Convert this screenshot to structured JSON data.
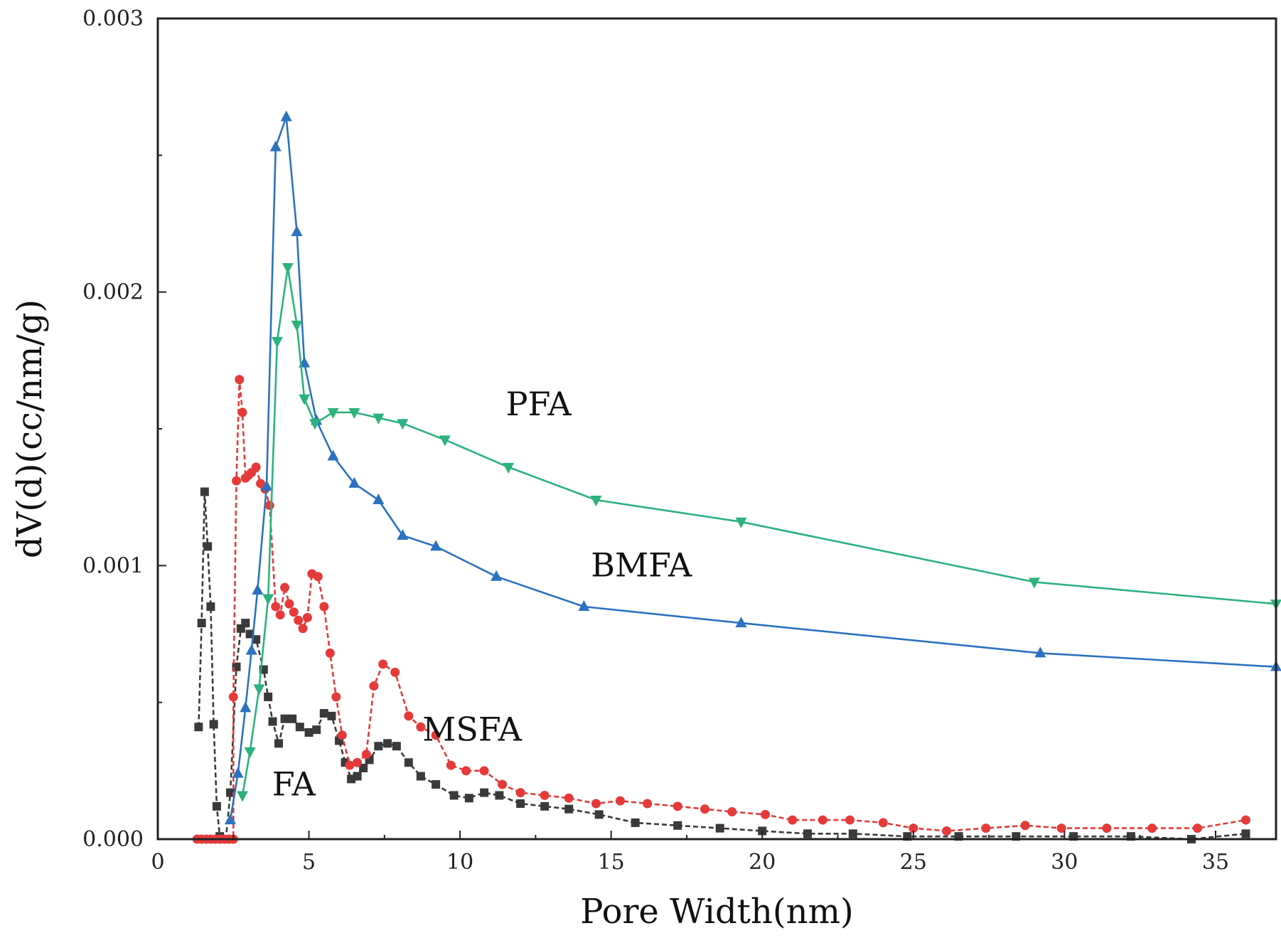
{
  "chart_data": {
    "type": "line",
    "title": "",
    "xlabel": "Pore Width(nm)",
    "ylabel": "dV(d)(cc/nm/g)",
    "xlim": [
      0,
      37
    ],
    "ylim": [
      0,
      0.003
    ],
    "grid": false,
    "x_ticks": [
      0,
      5,
      10,
      15,
      20,
      25,
      30,
      35
    ],
    "y_ticks": [
      0.0,
      0.001,
      0.002,
      0.003
    ],
    "x_tick_labels": [
      "0",
      "5",
      "10",
      "15",
      "20",
      "25",
      "30",
      "35"
    ],
    "y_tick_labels": [
      "0.000",
      "0.001",
      "0.002",
      "0.003"
    ],
    "series": [
      {
        "name": "FA",
        "label": "FA",
        "color": "#3a3a3a",
        "marker": "square",
        "dashed": true,
        "label_at": [
          4.5,
          0.00016
        ],
        "points": [
          [
            1.35,
            0.00041
          ],
          [
            1.45,
            0.00079
          ],
          [
            1.55,
            0.00127
          ],
          [
            1.65,
            0.00107
          ],
          [
            1.75,
            0.00085
          ],
          [
            1.85,
            0.00042
          ],
          [
            1.95,
            0.00012
          ],
          [
            2.05,
            1e-05
          ],
          [
            2.15,
            0.0
          ],
          [
            2.25,
            0.0
          ],
          [
            2.4,
            0.00017
          ],
          [
            2.6,
            0.00063
          ],
          [
            2.75,
            0.00077
          ],
          [
            2.9,
            0.00079
          ],
          [
            3.05,
            0.00075
          ],
          [
            3.25,
            0.00073
          ],
          [
            3.5,
            0.00062
          ],
          [
            3.65,
            0.00052
          ],
          [
            3.8,
            0.00043
          ],
          [
            4.0,
            0.00035
          ],
          [
            4.2,
            0.00044
          ],
          [
            4.45,
            0.00044
          ],
          [
            4.7,
            0.00041
          ],
          [
            5.0,
            0.00039
          ],
          [
            5.25,
            0.0004
          ],
          [
            5.5,
            0.00046
          ],
          [
            5.75,
            0.00045
          ],
          [
            6.0,
            0.00036
          ],
          [
            6.2,
            0.00028
          ],
          [
            6.4,
            0.00022
          ],
          [
            6.6,
            0.00023
          ],
          [
            6.8,
            0.00026
          ],
          [
            7.0,
            0.00029
          ],
          [
            7.3,
            0.00034
          ],
          [
            7.6,
            0.00035
          ],
          [
            7.9,
            0.00034
          ],
          [
            8.3,
            0.00028
          ],
          [
            8.7,
            0.00023
          ],
          [
            9.2,
            0.0002
          ],
          [
            9.8,
            0.00016
          ],
          [
            10.3,
            0.00015
          ],
          [
            10.8,
            0.00017
          ],
          [
            11.3,
            0.00016
          ],
          [
            12.0,
            0.00013
          ],
          [
            12.8,
            0.00012
          ],
          [
            13.6,
            0.00011
          ],
          [
            14.6,
            9e-05
          ],
          [
            15.8,
            6e-05
          ],
          [
            17.2,
            5e-05
          ],
          [
            18.6,
            4e-05
          ],
          [
            20.0,
            3e-05
          ],
          [
            21.5,
            2e-05
          ],
          [
            23.0,
            2e-05
          ],
          [
            24.8,
            1e-05
          ],
          [
            26.5,
            1e-05
          ],
          [
            28.4,
            1e-05
          ],
          [
            30.3,
            1e-05
          ],
          [
            32.2,
            1e-05
          ],
          [
            34.2,
            0.0
          ],
          [
            36.0,
            2e-05
          ]
        ]
      },
      {
        "name": "MSFA",
        "label": "MSFA",
        "color": "#e53a3a",
        "marker": "circle",
        "dashed": true,
        "label_at": [
          10.4,
          0.00036
        ],
        "points": [
          [
            1.3,
            0.0
          ],
          [
            1.45,
            0.0
          ],
          [
            1.6,
            0.0
          ],
          [
            1.75,
            0.0
          ],
          [
            1.9,
            0.0
          ],
          [
            2.05,
            0.0
          ],
          [
            2.2,
            0.0
          ],
          [
            2.35,
            0.0
          ],
          [
            2.5,
            0.0
          ],
          [
            2.5,
            0.00052
          ],
          [
            2.6,
            0.00131
          ],
          [
            2.7,
            0.00168
          ],
          [
            2.8,
            0.00156
          ],
          [
            2.9,
            0.00132
          ],
          [
            3.0,
            0.00133
          ],
          [
            3.1,
            0.00134
          ],
          [
            3.25,
            0.00136
          ],
          [
            3.4,
            0.0013
          ],
          [
            3.55,
            0.00128
          ],
          [
            3.7,
            0.00122
          ],
          [
            3.9,
            0.00085
          ],
          [
            4.05,
            0.00082
          ],
          [
            4.2,
            0.00092
          ],
          [
            4.35,
            0.00086
          ],
          [
            4.5,
            0.00083
          ],
          [
            4.65,
            0.0008
          ],
          [
            4.8,
            0.00077
          ],
          [
            4.95,
            0.00081
          ],
          [
            5.1,
            0.00097
          ],
          [
            5.3,
            0.00096
          ],
          [
            5.5,
            0.00085
          ],
          [
            5.7,
            0.00068
          ],
          [
            5.9,
            0.00052
          ],
          [
            6.1,
            0.00038
          ],
          [
            6.35,
            0.00027
          ],
          [
            6.6,
            0.00028
          ],
          [
            6.9,
            0.00031
          ],
          [
            7.15,
            0.00056
          ],
          [
            7.45,
            0.00064
          ],
          [
            7.85,
            0.00061
          ],
          [
            8.3,
            0.00045
          ],
          [
            8.7,
            0.00041
          ],
          [
            9.2,
            0.00038
          ],
          [
            9.7,
            0.00027
          ],
          [
            10.2,
            0.00025
          ],
          [
            10.8,
            0.00025
          ],
          [
            11.4,
            0.0002
          ],
          [
            12.0,
            0.00017
          ],
          [
            12.8,
            0.00016
          ],
          [
            13.6,
            0.00015
          ],
          [
            14.5,
            0.00013
          ],
          [
            15.3,
            0.00014
          ],
          [
            16.2,
            0.00013
          ],
          [
            17.2,
            0.00012
          ],
          [
            18.1,
            0.00011
          ],
          [
            19.0,
            0.0001
          ],
          [
            20.1,
            9e-05
          ],
          [
            21.0,
            7e-05
          ],
          [
            22.0,
            7e-05
          ],
          [
            22.9,
            7e-05
          ],
          [
            24.0,
            6e-05
          ],
          [
            25.0,
            4e-05
          ],
          [
            26.1,
            3e-05
          ],
          [
            27.4,
            4e-05
          ],
          [
            28.7,
            5e-05
          ],
          [
            29.9,
            4e-05
          ],
          [
            31.4,
            4e-05
          ],
          [
            32.9,
            4e-05
          ],
          [
            34.4,
            4e-05
          ],
          [
            36.0,
            7e-05
          ]
        ]
      },
      {
        "name": "BMFA",
        "label": "BMFA",
        "color": "#2b72c0",
        "marker": "triangle-up",
        "dashed": false,
        "label_at": [
          16.0,
          0.00096
        ],
        "points": [
          [
            2.4,
            7e-05
          ],
          [
            2.65,
            0.00024
          ],
          [
            2.9,
            0.00048
          ],
          [
            3.1,
            0.00069
          ],
          [
            3.3,
            0.00091
          ],
          [
            3.6,
            0.00129
          ],
          [
            3.9,
            0.00253
          ],
          [
            4.25,
            0.00264
          ],
          [
            4.6,
            0.00222
          ],
          [
            4.85,
            0.00174
          ],
          [
            5.25,
            0.00153
          ],
          [
            5.8,
            0.0014
          ],
          [
            6.5,
            0.0013
          ],
          [
            7.3,
            0.00124
          ],
          [
            8.1,
            0.00111
          ],
          [
            9.2,
            0.00107
          ],
          [
            11.2,
            0.00096
          ],
          [
            14.1,
            0.00085
          ],
          [
            19.3,
            0.00079
          ],
          [
            29.2,
            0.00068
          ],
          [
            37.0,
            0.00063
          ]
        ]
      },
      {
        "name": "PFA",
        "label": "PFA",
        "color": "#2bb27d",
        "marker": "triangle-down",
        "dashed": false,
        "label_at": [
          12.6,
          0.00155
        ],
        "points": [
          [
            2.8,
            0.00016
          ],
          [
            3.05,
            0.00032
          ],
          [
            3.35,
            0.00055
          ],
          [
            3.65,
            0.00088
          ],
          [
            3.95,
            0.00182
          ],
          [
            4.3,
            0.00209
          ],
          [
            4.6,
            0.00188
          ],
          [
            4.85,
            0.00161
          ],
          [
            5.2,
            0.00152
          ],
          [
            5.8,
            0.00156
          ],
          [
            6.5,
            0.00156
          ],
          [
            7.3,
            0.00154
          ],
          [
            8.1,
            0.00152
          ],
          [
            9.5,
            0.00146
          ],
          [
            11.6,
            0.00136
          ],
          [
            14.5,
            0.00124
          ],
          [
            19.3,
            0.00116
          ],
          [
            29.0,
            0.00094
          ],
          [
            37.0,
            0.00086
          ]
        ]
      }
    ]
  }
}
